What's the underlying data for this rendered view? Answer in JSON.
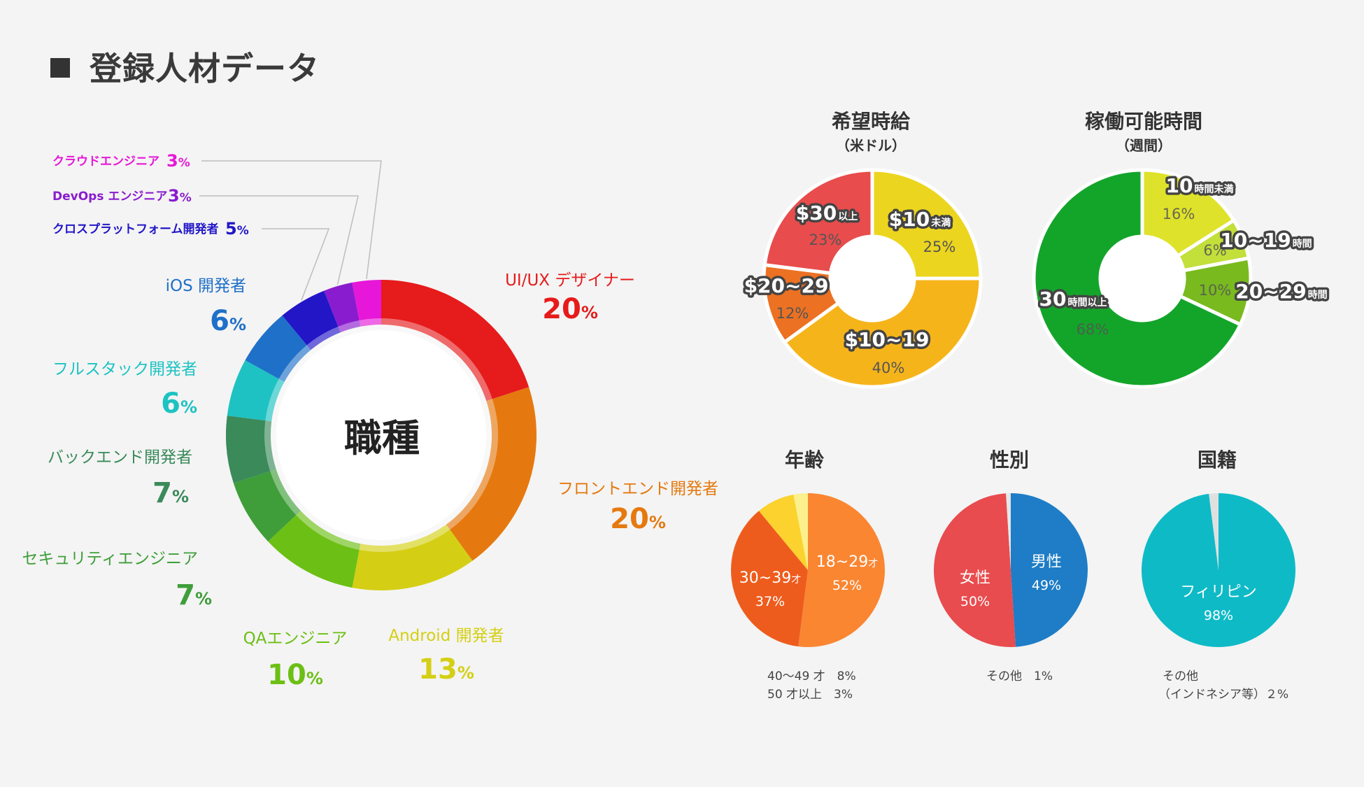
{
  "page": {
    "title": "登録人材データ"
  },
  "colors": {
    "bg": "#f4f4f4",
    "text": "#333333"
  },
  "chart_data": [
    {
      "id": "job",
      "type": "pie",
      "variant": "donut",
      "title": "職種",
      "unit": "%",
      "categories": [
        "UI/UX デザイナー",
        "フロントエンド開発者",
        "Android 開発者",
        "QAエンジニア",
        "セキュリティエンジニア",
        "バックエンド開発者",
        "フルスタック開発者",
        "iOS 開発者",
        "クロスプラットフォーム開発者",
        "DevOps エンジニア",
        "クラウドエンジニア"
      ],
      "values": [
        20,
        20,
        13,
        10,
        7,
        7,
        6,
        6,
        5,
        3,
        3
      ],
      "colors": [
        "#e61b1b",
        "#e5790f",
        "#d4cf14",
        "#6cbf14",
        "#3f9e3a",
        "#3a8a5a",
        "#1ec2c2",
        "#1f70c8",
        "#2216c7",
        "#8a1ccf",
        "#e617d8"
      ]
    },
    {
      "id": "wage",
      "type": "pie",
      "variant": "donut",
      "title": "希望時給",
      "subtitle": "（米ドル）",
      "categories": [
        "$10未満",
        "$10~19",
        "$20~29",
        "$30以上"
      ],
      "values": [
        25,
        40,
        12,
        23
      ],
      "colors": [
        "#ecd51e",
        "#f6b41b",
        "#ec7122",
        "#e84c4c"
      ]
    },
    {
      "id": "hours",
      "type": "pie",
      "variant": "donut",
      "title": "稼働可能時間",
      "subtitle": "（週間）",
      "categories": [
        "10時間未満",
        "10~19時間",
        "20~29時間",
        "30時間以上"
      ],
      "values": [
        16,
        6,
        10,
        68
      ],
      "colors": [
        "#dfe22a",
        "#c2df3a",
        "#79ba1e",
        "#13a52a"
      ]
    },
    {
      "id": "age",
      "type": "pie",
      "title": "年齢",
      "categories": [
        "18~29才",
        "30~39才",
        "40～49 才",
        "50 才以上"
      ],
      "values": [
        52,
        37,
        8,
        3
      ],
      "colors": [
        "#fa8632",
        "#ee5c1d",
        "#fbd22e",
        "#fbf08c"
      ],
      "notes": [
        "40～49 才　8%",
        "50 才以上　3%"
      ]
    },
    {
      "id": "gender",
      "type": "pie",
      "title": "性別",
      "categories": [
        "男性",
        "女性",
        "その他"
      ],
      "values": [
        49,
        50,
        1
      ],
      "colors": [
        "#1e7dc6",
        "#e84c4e",
        "#e6e6e6"
      ],
      "notes": [
        "その他　1%"
      ]
    },
    {
      "id": "nationality",
      "type": "pie",
      "title": "国籍",
      "categories": [
        "フィリピン",
        "その他"
      ],
      "values": [
        98,
        2
      ],
      "colors": [
        "#0fbac7",
        "#e0e0e0"
      ],
      "notes": [
        "その他",
        "（インドネシア等）２%"
      ]
    }
  ]
}
